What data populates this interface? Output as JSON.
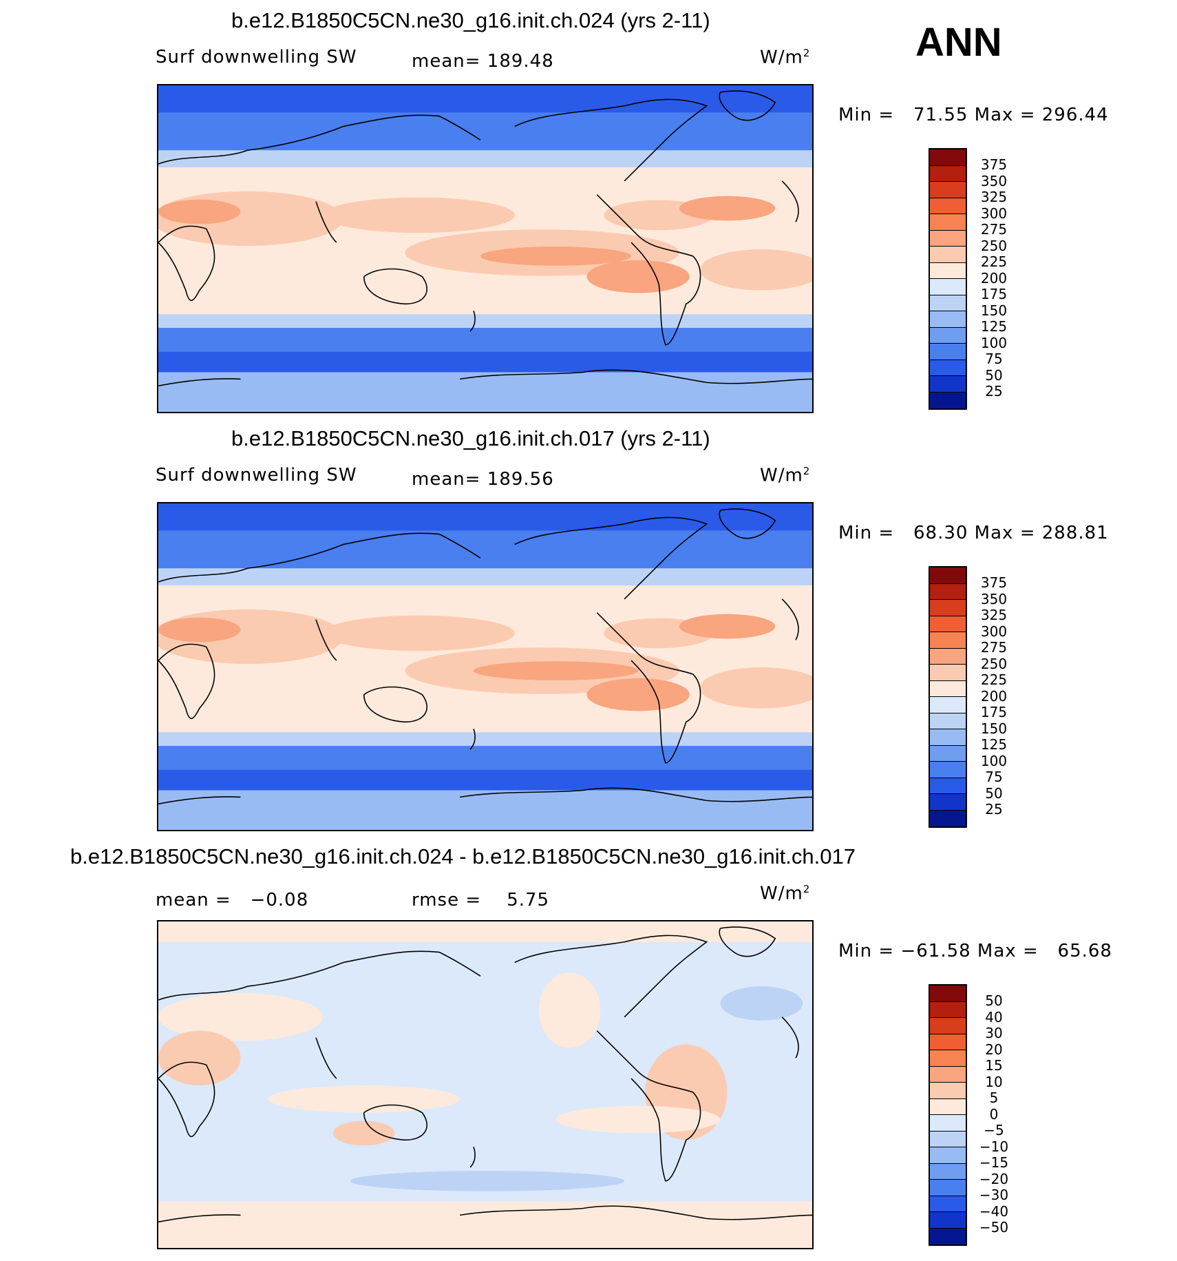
{
  "season": "ANN",
  "panels": [
    {
      "title": "b.e12.B1850C5CN.ne30_g16.init.ch.024 (yrs 2-11)",
      "left_label": "Surf downwelling SW",
      "center_label": "mean= 189.48",
      "units": "W/m",
      "units_sup": "2",
      "minmax": "Min =   71.55 Max = 296.44",
      "colorbar_labels": [
        "375",
        "350",
        "325",
        "300",
        "275",
        "250",
        "225",
        "200",
        "175",
        "150",
        "125",
        "100",
        "75",
        "50",
        "25"
      ]
    },
    {
      "title": "b.e12.B1850C5CN.ne30_g16.init.ch.017 (yrs 2-11)",
      "left_label": "Surf downwelling SW",
      "center_label": "mean= 189.56",
      "units": "W/m",
      "units_sup": "2",
      "minmax": "Min =   68.30 Max = 288.81",
      "colorbar_labels": [
        "375",
        "350",
        "325",
        "300",
        "275",
        "250",
        "225",
        "200",
        "175",
        "150",
        "125",
        "100",
        "75",
        "50",
        "25"
      ]
    },
    {
      "title": "b.e12.B1850C5CN.ne30_g16.init.ch.024 - b.e12.B1850C5CN.ne30_g16.init.ch.017",
      "left_label": "mean =   −0.08",
      "center_label": "rmse =    5.75",
      "units": "W/m",
      "units_sup": "2",
      "minmax": "Min = −61.58 Max =   65.68",
      "colorbar_labels": [
        "50",
        "40",
        "30",
        "20",
        "15",
        "10",
        "5",
        "0",
        "−5",
        "−10",
        "−15",
        "−20",
        "−30",
        "−40",
        "−50"
      ]
    }
  ],
  "colorbar_colors": [
    "#82090a",
    "#b3200f",
    "#d83d1e",
    "#f25e33",
    "#f78352",
    "#f9a57f",
    "#fbcbb1",
    "#fdeadc",
    "#dbe9fa",
    "#bcd3f5",
    "#99bbf3",
    "#6f9ef0",
    "#4a7ff0",
    "#2a5ae8",
    "#1235c9",
    "#04168f"
  ],
  "map_colors": {
    "polar": "#2a5ae8",
    "subpolar": "#4a7ff0",
    "midlat": "#99bbf3",
    "light": "#bcd3f5",
    "neutral": "#fdeadc",
    "warm": "#fbcbb1",
    "hot": "#f9a57f",
    "diff_bg": "#dbe9fa",
    "diff_pos": "#fdeadc",
    "diff_pos2": "#fbcbb1",
    "diff_neg": "#bcd3f5"
  }
}
